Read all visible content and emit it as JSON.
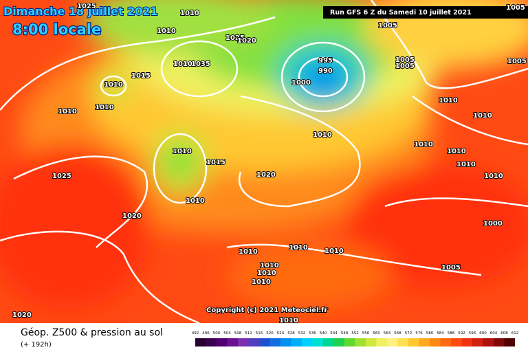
{
  "header": {
    "date": "Dimanche 18 juillet 2021",
    "time": "8:00 locale",
    "run": "Run GFS 6 Z du Samedi 10 juillet 2021"
  },
  "isobar_labels": [
    "1025",
    "1010",
    "1005",
    "1005",
    "1010",
    "1025",
    "1020",
    "1035",
    "1010",
    "1015",
    "1010",
    "995",
    "990",
    "1000",
    "1005",
    "1005",
    "1005",
    "1010",
    "1010",
    "1010",
    "1010",
    "1010",
    "1010",
    "1010",
    "1010",
    "1010",
    "1015",
    "1020",
    "1010",
    "1025",
    "1010",
    "1020",
    "1000",
    "1010",
    "1010",
    "1010",
    "1010",
    "1005",
    "1010",
    "1010",
    "1020",
    "1010"
  ],
  "copyright": "Copyright (c) 2021 Meteociel.fr",
  "footer": {
    "title": "Géop. Z500 & pression au sol",
    "subtitle": "(+ 192h)"
  },
  "scale": {
    "labels": [
      492,
      496,
      500,
      504,
      508,
      512,
      516,
      520,
      524,
      528,
      532,
      536,
      540,
      544,
      548,
      552,
      556,
      560,
      564,
      568,
      572,
      576,
      580,
      584,
      588,
      592,
      596,
      600,
      604,
      608,
      612
    ],
    "colors": [
      "#2a0030",
      "#3c0050",
      "#500070",
      "#6a1090",
      "#7a30b0",
      "#5040c0",
      "#2050d0",
      "#1070e0",
      "#0090f0",
      "#00b0ff",
      "#00d0ff",
      "#00e0d0",
      "#00d890",
      "#20d050",
      "#60d830",
      "#a0e030",
      "#d0e840",
      "#f0f060",
      "#fff080",
      "#ffe050",
      "#ffc830",
      "#ffa820",
      "#ff8810",
      "#ff6a10",
      "#ff4a10",
      "#f03010",
      "#d02010",
      "#b01010",
      "#800808",
      "#500000"
    ]
  }
}
